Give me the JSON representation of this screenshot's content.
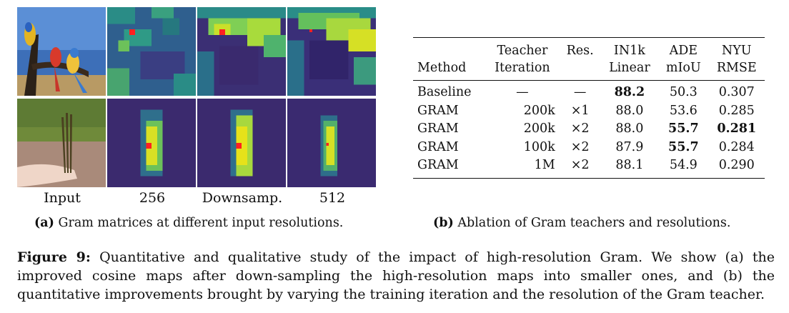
{
  "left_panel": {
    "column_labels": [
      "Input",
      "256",
      "Downsamp.",
      "512"
    ],
    "subcaption_tag": "(a)",
    "subcaption_text": "Gram matrices at different input resolutions.",
    "rows": [
      {
        "input": "parrots-photo"
      },
      {
        "input": "plant-photo"
      }
    ],
    "colors": {
      "low": "#3b1f6b",
      "mid": "#2f8f8a",
      "high": "#e6e21a",
      "query": "#ff2020"
    }
  },
  "table": {
    "headers_top": [
      "",
      "Teacher",
      "Res.",
      "IN1k",
      "ADE",
      "NYU"
    ],
    "headers_bottom": [
      "Method",
      "Iteration",
      "",
      "Linear",
      "mIoU",
      "RMSE"
    ],
    "rows": [
      {
        "method": "Baseline",
        "iteration": "—",
        "res": "—",
        "in1k": "88.2",
        "ade": "50.3",
        "nyu": "0.307"
      },
      {
        "method": "GRAM",
        "iteration": "200k",
        "res": "×1",
        "in1k": "88.0",
        "ade": "53.6",
        "nyu": "0.285"
      },
      {
        "method": "GRAM",
        "iteration": "200k",
        "res": "×2",
        "in1k": "88.0",
        "ade": "55.7",
        "nyu": "0.281"
      },
      {
        "method": "GRAM",
        "iteration": "100k",
        "res": "×2",
        "in1k": "87.9",
        "ade": "55.7",
        "nyu": "0.284"
      },
      {
        "method": "GRAM",
        "iteration": "1M",
        "res": "×2",
        "in1k": "88.1",
        "ade": "54.9",
        "nyu": "0.290"
      }
    ],
    "subcaption_tag": "(b)",
    "subcaption_text": "Ablation of Gram teachers and resolutions."
  },
  "caption": {
    "label": "Figure 9:",
    "text": "Quantitative and qualitative study of the impact of high-resolution Gram. We show (a) the improved cosine maps after down-sampling the high-resolution maps into smaller ones, and (b) the quantitative improvements brought by varying the training iteration and the resolution of the Gram teacher."
  }
}
